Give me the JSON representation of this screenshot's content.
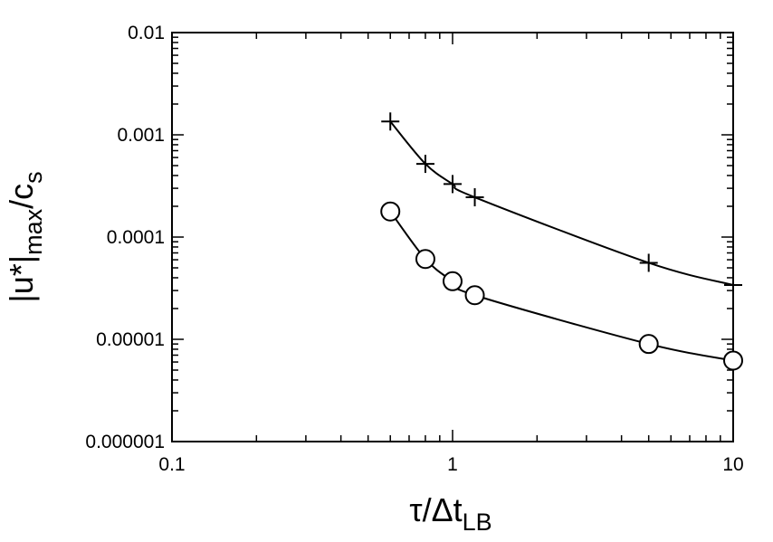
{
  "chart_data": {
    "type": "line",
    "xscale": "log",
    "yscale": "log",
    "xlim": [
      0.1,
      10
    ],
    "ylim": [
      1e-06,
      0.01
    ],
    "grid": false,
    "xticks": [
      {
        "value": 0.1,
        "label": "0.1"
      },
      {
        "value": 1,
        "label": "1"
      },
      {
        "value": 10,
        "label": "10"
      }
    ],
    "yticks": [
      {
        "value": 0.01,
        "label": "0.01"
      },
      {
        "value": 0.001,
        "label": "0.001"
      },
      {
        "value": 0.0001,
        "label": "0.0001"
      },
      {
        "value": 1e-05,
        "label": "0.00001"
      },
      {
        "value": 1e-06,
        "label": "0.000001"
      }
    ],
    "xlabel": {
      "main": "τ/Δt",
      "sub": "LB"
    },
    "ylabel": {
      "main": "|u*|",
      "sub": "max",
      "tail": "/c",
      "sub2": "s"
    },
    "series": [
      {
        "marker": "plus",
        "x": [
          0.6,
          0.8,
          1.0,
          1.2,
          5.0,
          10.0
        ],
        "y": [
          0.00135,
          0.00052,
          0.00033,
          0.000245,
          5.6e-05,
          3.4e-05
        ]
      },
      {
        "marker": "circle",
        "x": [
          0.6,
          0.8,
          1.0,
          1.2,
          5.0,
          10.0
        ],
        "y": [
          0.000178,
          6.1e-05,
          3.7e-05,
          2.7e-05,
          9e-06,
          6.2e-06
        ]
      }
    ]
  }
}
